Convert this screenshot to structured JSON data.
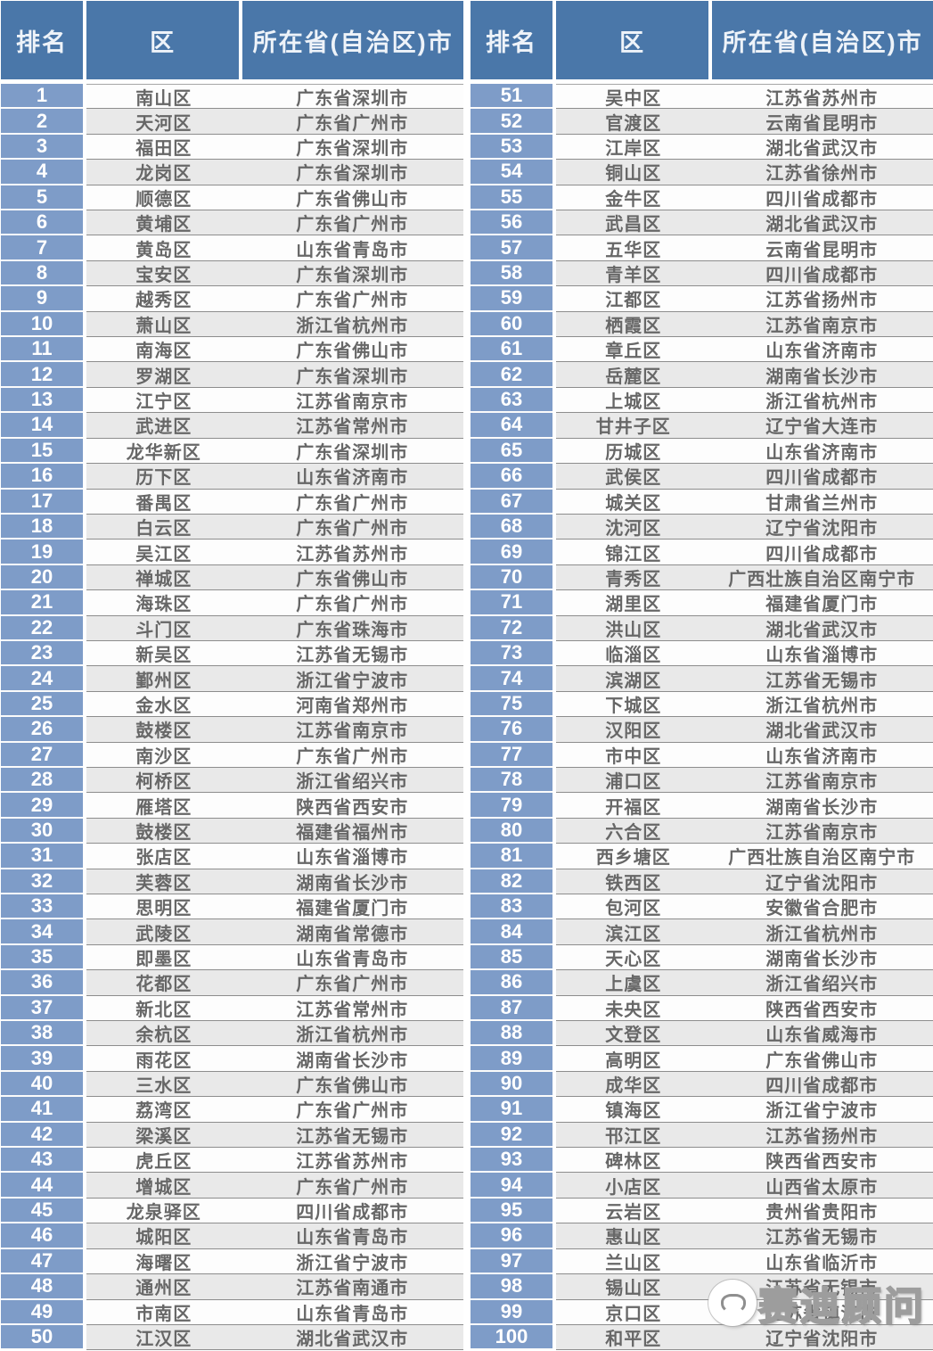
{
  "table": {
    "headers": [
      "排名",
      "区",
      "所在省(自治区)市"
    ],
    "left_rows": [
      {
        "rank": 1,
        "district": "南山区",
        "province": "广东省深圳市"
      },
      {
        "rank": 2,
        "district": "天河区",
        "province": "广东省广州市"
      },
      {
        "rank": 3,
        "district": "福田区",
        "province": "广东省深圳市"
      },
      {
        "rank": 4,
        "district": "龙岗区",
        "province": "广东省深圳市"
      },
      {
        "rank": 5,
        "district": "顺德区",
        "province": "广东省佛山市"
      },
      {
        "rank": 6,
        "district": "黄埔区",
        "province": "广东省广州市"
      },
      {
        "rank": 7,
        "district": "黄岛区",
        "province": "山东省青岛市"
      },
      {
        "rank": 8,
        "district": "宝安区",
        "province": "广东省深圳市"
      },
      {
        "rank": 9,
        "district": "越秀区",
        "province": "广东省广州市"
      },
      {
        "rank": 10,
        "district": "萧山区",
        "province": "浙江省杭州市"
      },
      {
        "rank": 11,
        "district": "南海区",
        "province": "广东省佛山市"
      },
      {
        "rank": 12,
        "district": "罗湖区",
        "province": "广东省深圳市"
      },
      {
        "rank": 13,
        "district": "江宁区",
        "province": "江苏省南京市"
      },
      {
        "rank": 14,
        "district": "武进区",
        "province": "江苏省常州市"
      },
      {
        "rank": 15,
        "district": "龙华新区",
        "province": "广东省深圳市"
      },
      {
        "rank": 16,
        "district": "历下区",
        "province": "山东省济南市"
      },
      {
        "rank": 17,
        "district": "番禺区",
        "province": "广东省广州市"
      },
      {
        "rank": 18,
        "district": "白云区",
        "province": "广东省广州市"
      },
      {
        "rank": 19,
        "district": "吴江区",
        "province": "江苏省苏州市"
      },
      {
        "rank": 20,
        "district": "禅城区",
        "province": "广东省佛山市"
      },
      {
        "rank": 21,
        "district": "海珠区",
        "province": "广东省广州市"
      },
      {
        "rank": 22,
        "district": "斗门区",
        "province": "广东省珠海市"
      },
      {
        "rank": 23,
        "district": "新吴区",
        "province": "江苏省无锡市"
      },
      {
        "rank": 24,
        "district": "鄞州区",
        "province": "浙江省宁波市"
      },
      {
        "rank": 25,
        "district": "金水区",
        "province": "河南省郑州市"
      },
      {
        "rank": 26,
        "district": "鼓楼区",
        "province": "江苏省南京市"
      },
      {
        "rank": 27,
        "district": "南沙区",
        "province": "广东省广州市"
      },
      {
        "rank": 28,
        "district": "柯桥区",
        "province": "浙江省绍兴市"
      },
      {
        "rank": 29,
        "district": "雁塔区",
        "province": "陕西省西安市"
      },
      {
        "rank": 30,
        "district": "鼓楼区",
        "province": "福建省福州市"
      },
      {
        "rank": 31,
        "district": "张店区",
        "province": "山东省淄博市"
      },
      {
        "rank": 32,
        "district": "芙蓉区",
        "province": "湖南省长沙市"
      },
      {
        "rank": 33,
        "district": "思明区",
        "province": "福建省厦门市"
      },
      {
        "rank": 34,
        "district": "武陵区",
        "province": "湖南省常德市"
      },
      {
        "rank": 35,
        "district": "即墨区",
        "province": "山东省青岛市"
      },
      {
        "rank": 36,
        "district": "花都区",
        "province": "广东省广州市"
      },
      {
        "rank": 37,
        "district": "新北区",
        "province": "江苏省常州市"
      },
      {
        "rank": 38,
        "district": "余杭区",
        "province": "浙江省杭州市"
      },
      {
        "rank": 39,
        "district": "雨花区",
        "province": "湖南省长沙市"
      },
      {
        "rank": 40,
        "district": "三水区",
        "province": "广东省佛山市"
      },
      {
        "rank": 41,
        "district": "荔湾区",
        "province": "广东省广州市"
      },
      {
        "rank": 42,
        "district": "梁溪区",
        "province": "江苏省无锡市"
      },
      {
        "rank": 43,
        "district": "虎丘区",
        "province": "江苏省苏州市"
      },
      {
        "rank": 44,
        "district": "增城区",
        "province": "广东省广州市"
      },
      {
        "rank": 45,
        "district": "龙泉驿区",
        "province": "四川省成都市"
      },
      {
        "rank": 46,
        "district": "城阳区",
        "province": "山东省青岛市"
      },
      {
        "rank": 47,
        "district": "海曙区",
        "province": "浙江省宁波市"
      },
      {
        "rank": 48,
        "district": "通州区",
        "province": "江苏省南通市"
      },
      {
        "rank": 49,
        "district": "市南区",
        "province": "山东省青岛市"
      },
      {
        "rank": 50,
        "district": "江汉区",
        "province": "湖北省武汉市"
      }
    ],
    "right_rows": [
      {
        "rank": 51,
        "district": "吴中区",
        "province": "江苏省苏州市"
      },
      {
        "rank": 52,
        "district": "官渡区",
        "province": "云南省昆明市"
      },
      {
        "rank": 53,
        "district": "江岸区",
        "province": "湖北省武汉市"
      },
      {
        "rank": 54,
        "district": "铜山区",
        "province": "江苏省徐州市"
      },
      {
        "rank": 55,
        "district": "金牛区",
        "province": "四川省成都市"
      },
      {
        "rank": 56,
        "district": "武昌区",
        "province": "湖北省武汉市"
      },
      {
        "rank": 57,
        "district": "五华区",
        "province": "云南省昆明市"
      },
      {
        "rank": 58,
        "district": "青羊区",
        "province": "四川省成都市"
      },
      {
        "rank": 59,
        "district": "江都区",
        "province": "江苏省扬州市"
      },
      {
        "rank": 60,
        "district": "栖霞区",
        "province": "江苏省南京市"
      },
      {
        "rank": 61,
        "district": "章丘区",
        "province": "山东省济南市"
      },
      {
        "rank": 62,
        "district": "岳麓区",
        "province": "湖南省长沙市"
      },
      {
        "rank": 63,
        "district": "上城区",
        "province": "浙江省杭州市"
      },
      {
        "rank": 64,
        "district": "甘井子区",
        "province": "辽宁省大连市"
      },
      {
        "rank": 65,
        "district": "历城区",
        "province": "山东省济南市"
      },
      {
        "rank": 66,
        "district": "武侯区",
        "province": "四川省成都市"
      },
      {
        "rank": 67,
        "district": "城关区",
        "province": "甘肃省兰州市"
      },
      {
        "rank": 68,
        "district": "沈河区",
        "province": "辽宁省沈阳市"
      },
      {
        "rank": 69,
        "district": "锦江区",
        "province": "四川省成都市"
      },
      {
        "rank": 70,
        "district": "青秀区",
        "province": "广西壮族自治区南宁市"
      },
      {
        "rank": 71,
        "district": "湖里区",
        "province": "福建省厦门市"
      },
      {
        "rank": 72,
        "district": "洪山区",
        "province": "湖北省武汉市"
      },
      {
        "rank": 73,
        "district": "临淄区",
        "province": "山东省淄博市"
      },
      {
        "rank": 74,
        "district": "滨湖区",
        "province": "江苏省无锡市"
      },
      {
        "rank": 75,
        "district": "下城区",
        "province": "浙江省杭州市"
      },
      {
        "rank": 76,
        "district": "汉阳区",
        "province": "湖北省武汉市"
      },
      {
        "rank": 77,
        "district": "市中区",
        "province": "山东省济南市"
      },
      {
        "rank": 78,
        "district": "浦口区",
        "province": "江苏省南京市"
      },
      {
        "rank": 79,
        "district": "开福区",
        "province": "湖南省长沙市"
      },
      {
        "rank": 80,
        "district": "六合区",
        "province": "江苏省南京市"
      },
      {
        "rank": 81,
        "district": "西乡塘区",
        "province": "广西壮族自治区南宁市"
      },
      {
        "rank": 82,
        "district": "铁西区",
        "province": "辽宁省沈阳市"
      },
      {
        "rank": 83,
        "district": "包河区",
        "province": "安徽省合肥市"
      },
      {
        "rank": 84,
        "district": "滨江区",
        "province": "浙江省杭州市"
      },
      {
        "rank": 85,
        "district": "天心区",
        "province": "湖南省长沙市"
      },
      {
        "rank": 86,
        "district": "上虞区",
        "province": "浙江省绍兴市"
      },
      {
        "rank": 87,
        "district": "未央区",
        "province": "陕西省西安市"
      },
      {
        "rank": 88,
        "district": "文登区",
        "province": "山东省威海市"
      },
      {
        "rank": 89,
        "district": "高明区",
        "province": "广东省佛山市"
      },
      {
        "rank": 90,
        "district": "成华区",
        "province": "四川省成都市"
      },
      {
        "rank": 91,
        "district": "镇海区",
        "province": "浙江省宁波市"
      },
      {
        "rank": 92,
        "district": "邗江区",
        "province": "江苏省扬州市"
      },
      {
        "rank": 93,
        "district": "碑林区",
        "province": "陕西省西安市"
      },
      {
        "rank": 94,
        "district": "小店区",
        "province": "山西省太原市"
      },
      {
        "rank": 95,
        "district": "云岩区",
        "province": "贵州省贵阳市"
      },
      {
        "rank": 96,
        "district": "惠山区",
        "province": "江苏省无锡市"
      },
      {
        "rank": 97,
        "district": "兰山区",
        "province": "山东省临沂市"
      },
      {
        "rank": 98,
        "district": "锡山区",
        "province": "江苏省无锡市"
      },
      {
        "rank": 99,
        "district": "京口区",
        "province": "江苏省镇江市"
      },
      {
        "rank": 100,
        "district": "和平区",
        "province": "辽宁省沈阳市"
      }
    ]
  },
  "watermark": {
    "text": "赛迪顾问"
  },
  "colors": {
    "header_bg": "#4a77a9",
    "rank_column_bg": "#7e9cc8",
    "row_odd_bg": "#fdfdfd",
    "row_even_bg": "#e9e9e9",
    "row_border": "#8d8d8d",
    "body_text": "#676767",
    "header_text": "#eef3f9"
  }
}
